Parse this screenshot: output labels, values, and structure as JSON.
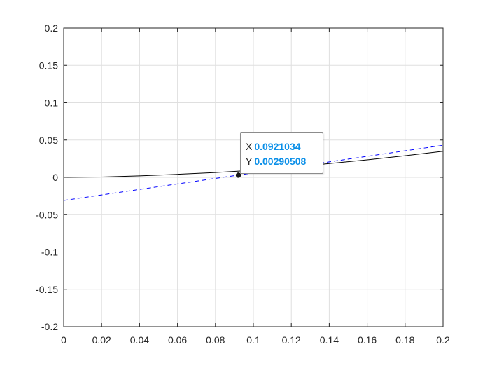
{
  "chart_data": {
    "type": "line",
    "xlim": [
      0,
      0.2
    ],
    "ylim": [
      -0.2,
      0.2
    ],
    "grid": true,
    "x_ticks": [
      0,
      0.02,
      0.04,
      0.06,
      0.08,
      0.1,
      0.12,
      0.14,
      0.16,
      0.18,
      0.2
    ],
    "x_tick_labels": [
      "0",
      "0.02",
      "0.04",
      "0.06",
      "0.08",
      "0.1",
      "0.12",
      "0.14",
      "0.16",
      "0.18",
      "0.2"
    ],
    "y_ticks": [
      0.2,
      0.15,
      0.1,
      0.05,
      0,
      -0.05,
      -0.1,
      -0.15,
      -0.2
    ],
    "y_tick_labels": [
      "0.2",
      "0.15",
      "0.1",
      "0.05",
      "0",
      "-0.05",
      "-0.1",
      "-0.15",
      "-0.2"
    ],
    "series": [
      {
        "style": "solid",
        "color": "#000000",
        "x": [
          0,
          0.02,
          0.04,
          0.06,
          0.08,
          0.1,
          0.12,
          0.14,
          0.16,
          0.18,
          0.2
        ],
        "y": [
          0,
          0.0005,
          0.002,
          0.004,
          0.0065,
          0.0095,
          0.0135,
          0.0185,
          0.0235,
          0.029,
          0.035
        ]
      },
      {
        "style": "dashed",
        "color": "#0000ff",
        "x": [
          0,
          0.2
        ],
        "y": [
          -0.031,
          0.043
        ]
      }
    ],
    "marker": {
      "x": 0.0921034,
      "y": 0.00290508,
      "color": "#1a1a1a"
    },
    "datatip": {
      "x_label": "X",
      "x_value": "0.0921034",
      "y_label": "Y",
      "y_value": "0.00290508"
    }
  }
}
